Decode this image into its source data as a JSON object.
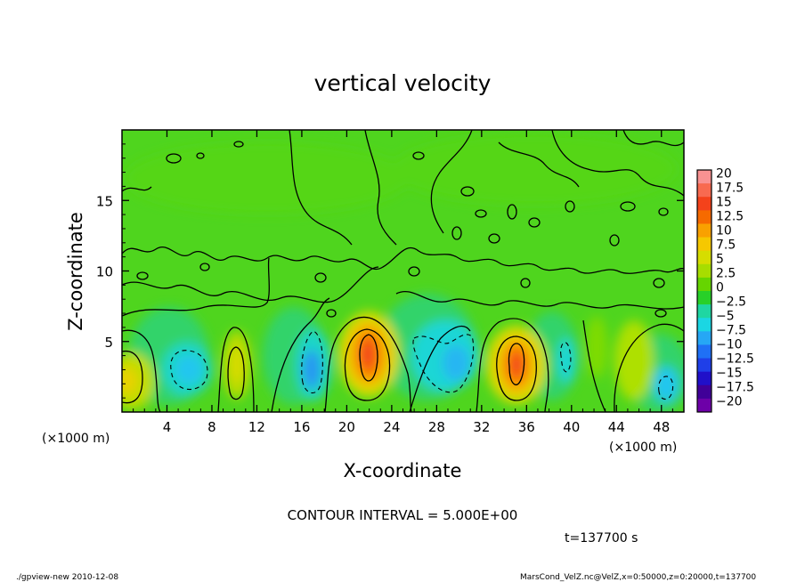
{
  "chart_data": {
    "type": "heatmap",
    "title": "vertical velocity",
    "xlabel": "X-coordinate",
    "ylabel": "Z-coordinate",
    "x_unit_label_left": "(×1000 m)",
    "x_unit_label_right": "(×1000 m)",
    "xlim": [
      0,
      50
    ],
    "ylim": [
      0,
      20
    ],
    "x_ticks": [
      4,
      8,
      12,
      16,
      20,
      24,
      28,
      32,
      36,
      40,
      44,
      48
    ],
    "y_ticks": [
      5,
      10,
      15
    ],
    "colorbar_levels": [
      20,
      17.5,
      15,
      12.5,
      10,
      7.5,
      5,
      2.5,
      0,
      -2.5,
      -5,
      -7.5,
      -10,
      -12.5,
      -15,
      -17.5,
      -20
    ],
    "colorbar_colors": [
      "#f99292",
      "#f86a50",
      "#f4421b",
      "#f66a00",
      "#f9a100",
      "#f6c800",
      "#d6dd00",
      "#a7dd00",
      "#66d500",
      "#28d028",
      "#1fd6a2",
      "#1bd6e3",
      "#26a7f5",
      "#1f70f5",
      "#1f3fe8",
      "#2010c9",
      "#400098",
      "#6d00a8"
    ],
    "features": [
      {
        "label": "updraft",
        "x": 22,
        "z": 3.8,
        "peak": 12.5
      },
      {
        "label": "updraft",
        "x": 35,
        "z": 3.3,
        "peak": 12.5
      },
      {
        "label": "updraft",
        "x": 10,
        "z": 3.5,
        "peak": 5
      },
      {
        "label": "updraft",
        "x": 0.8,
        "z": 2.2,
        "peak": 7.5
      },
      {
        "label": "downdraft",
        "x": 5.8,
        "z": 2.8,
        "peak": -7.5
      },
      {
        "label": "downdraft",
        "x": 16.8,
        "z": 2.6,
        "peak": -10
      },
      {
        "label": "downdraft",
        "x": 29.5,
        "z": 3.5,
        "peak": -7.5
      },
      {
        "label": "downdraft",
        "x": 40,
        "z": 3.5,
        "peak": -5
      },
      {
        "label": "downdraft",
        "x": 48,
        "z": 2,
        "peak": -5
      }
    ],
    "contour_interval_text": "CONTOUR INTERVAL = 5.000E+00",
    "time_text": "t=137700 s",
    "footer_left": "./gpview-new  2010-12-08",
    "footer_right": "MarsCond_VelZ.nc@VelZ,x=0:50000,z=0:20000,t=137700"
  }
}
